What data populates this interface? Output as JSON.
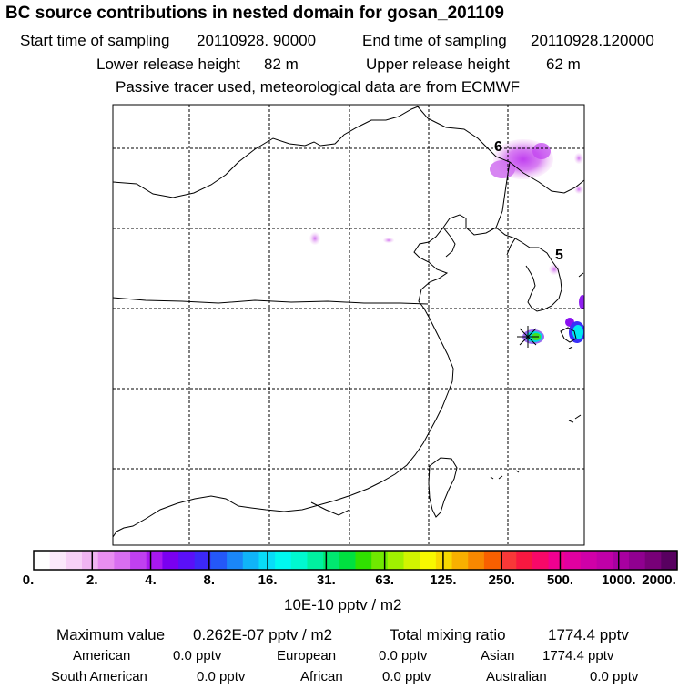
{
  "header": {
    "title": "BC  source contributions in nested domain for gosan_201109",
    "start_label": "Start time of sampling",
    "start_value": "20110928. 90000",
    "end_label": "End time of sampling",
    "end_value": "20110928.120000",
    "lower_label": "Lower release height",
    "lower_value": "82 m",
    "upper_label": "Upper release height",
    "upper_value": "62 m",
    "note": "Passive tracer used, meteorological data are from ECMWF"
  },
  "map": {
    "day_labels": [
      "6",
      "5"
    ],
    "station": "gosan"
  },
  "colorbar": {
    "colors": [
      "#ffffff",
      "#fbe8fb",
      "#f7d0f7",
      "#f0b4f2",
      "#e88ef0",
      "#d86ef0",
      "#c040f0",
      "#a818f0",
      "#7a00f0",
      "#5a10f8",
      "#3c28f8",
      "#2458f8",
      "#1a86f8",
      "#10b4f8",
      "#08dcf8",
      "#00f8f0",
      "#00f8d0",
      "#00f0a0",
      "#00e870",
      "#00e040",
      "#30e000",
      "#70e800",
      "#a0f000",
      "#d0f400",
      "#f8f800",
      "#f8d800",
      "#f8b000",
      "#f88800",
      "#f86000",
      "#f83838",
      "#f81840",
      "#f80868",
      "#f00090",
      "#e000a0",
      "#d000a8",
      "#c000a8",
      "#a800a0",
      "#900090",
      "#780078",
      "#580060"
    ],
    "ticks": [
      "0.",
      "2.",
      "4.",
      "8.",
      "16.",
      "31.",
      "63.",
      "125.",
      "250.",
      "500.",
      "1000.",
      "2000."
    ],
    "units": "10E-10 pptv / m2"
  },
  "summary": {
    "max_label": "Maximum value",
    "max_value": "0.262E-07 pptv / m2",
    "total_label": "Total mixing ratio",
    "total_value": "1774.4 pptv"
  },
  "regions": [
    {
      "name": "American",
      "value": "0.0 pptv"
    },
    {
      "name": "European",
      "value": "0.0 pptv"
    },
    {
      "name": "Asian",
      "value": "1774.4 pptv"
    },
    {
      "name": "South American",
      "value": "0.0 pptv"
    },
    {
      "name": "African",
      "value": "0.0 pptv"
    },
    {
      "name": "Australian",
      "value": "0.0 pptv"
    }
  ]
}
